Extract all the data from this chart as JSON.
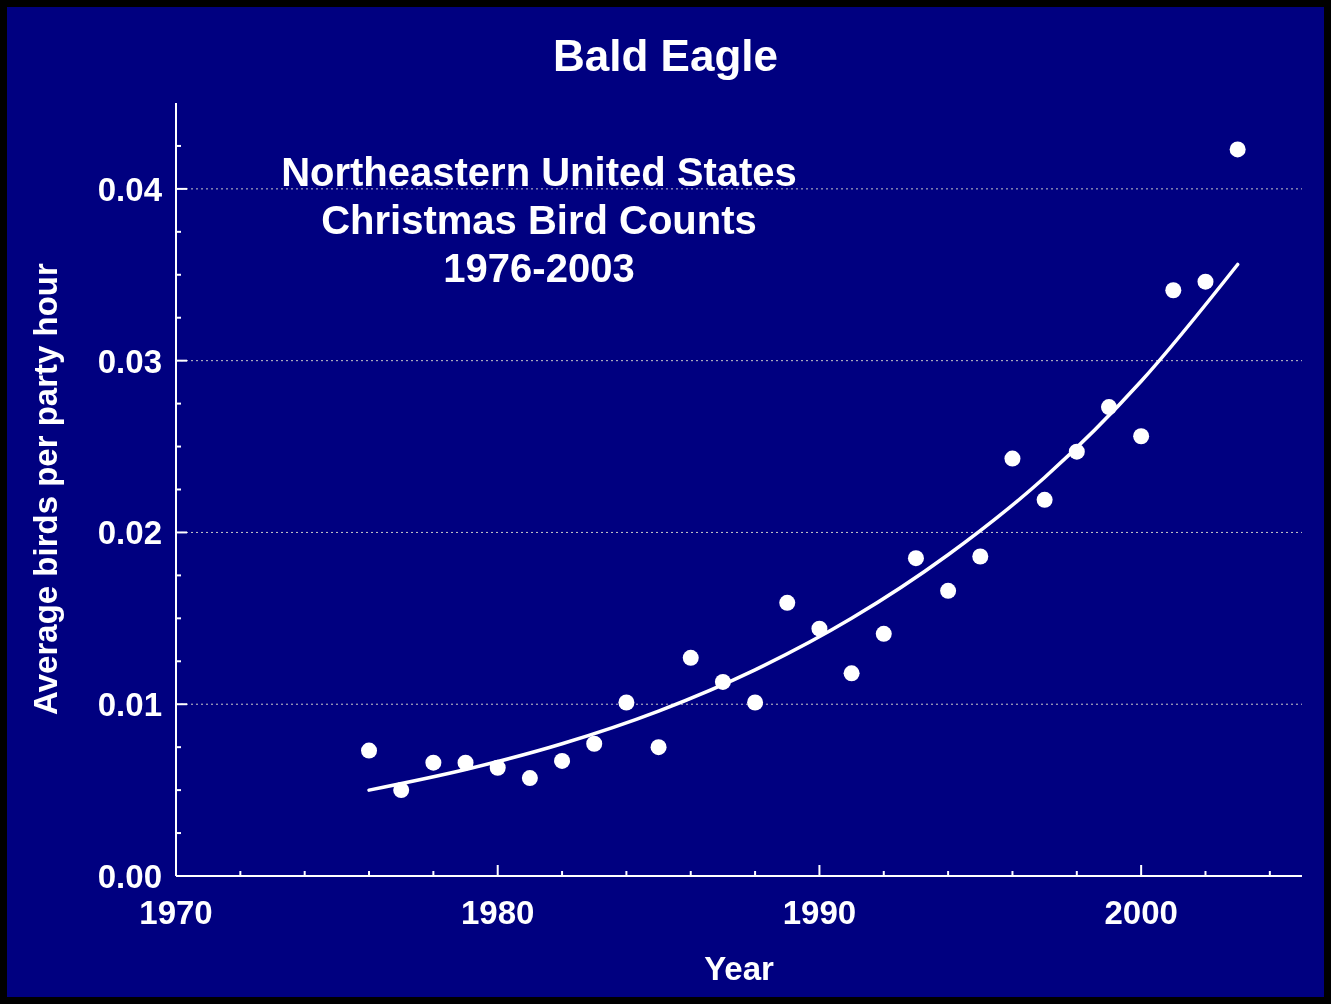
{
  "chart_data": {
    "type": "scatter",
    "title": "Bald Eagle",
    "annotations": [
      "Northeastern United States\nChristmas Bird Counts\n1976-2003"
    ],
    "xlabel": "Year",
    "ylabel": "Average birds per party hour",
    "series": [
      {
        "type": "scatter",
        "color": "#ffffff",
        "marker": "circle",
        "x": [
          1976,
          1977,
          1978,
          1979,
          1980,
          1981,
          1982,
          1983,
          1984,
          1985,
          1986,
          1987,
          1988,
          1989,
          1990,
          1991,
          1992,
          1993,
          1994,
          1995,
          1996,
          1997,
          1998,
          1999,
          2000,
          2001,
          2002,
          2003
        ],
        "values": [
          0.0073,
          0.005,
          0.0066,
          0.0066,
          0.0063,
          0.0057,
          0.0067,
          0.0077,
          0.0101,
          0.0075,
          0.0127,
          0.0113,
          0.0101,
          0.0159,
          0.0144,
          0.0118,
          0.0141,
          0.0185,
          0.0166,
          0.0186,
          0.0243,
          0.0219,
          0.0247,
          0.0273,
          0.0256,
          0.0341,
          0.0346,
          0.0423
        ]
      },
      {
        "type": "line",
        "color": "#ffffff",
        "marker": "none",
        "line_style": "solid",
        "x": [
          1976,
          1979,
          1982,
          1985,
          1988,
          1991,
          1994,
          1997,
          2000,
          2003
        ],
        "values": [
          0.005,
          0.0062,
          0.0077,
          0.0096,
          0.012,
          0.015,
          0.0187,
          0.0232,
          0.0288,
          0.0356
        ]
      }
    ],
    "xlim": [
      1970,
      2005
    ],
    "xticks": [
      1970,
      {
        "value": 1972,
        "label": null
      },
      {
        "value": 1974,
        "label": null
      },
      {
        "value": 1976,
        "label": null
      },
      {
        "value": 1978,
        "label": null
      },
      1980,
      {
        "value": 1982,
        "label": null
      },
      {
        "value": 1984,
        "label": null
      },
      {
        "value": 1986,
        "label": null
      },
      {
        "value": 1988,
        "label": null
      },
      1990,
      {
        "value": 1992,
        "label": null
      },
      {
        "value": 1994,
        "label": null
      },
      {
        "value": 1996,
        "label": null
      },
      {
        "value": 1998,
        "label": null
      },
      2000,
      {
        "value": 2002,
        "label": null
      },
      {
        "value": 2004,
        "label": null
      }
    ],
    "ylim": [
      0,
      0.045
    ],
    "yticks": [
      {
        "value": 0,
        "label": "0.00"
      },
      {
        "value": 0.0025,
        "label": null
      },
      {
        "value": 0.005,
        "label": null
      },
      {
        "value": 0.0075,
        "label": null
      },
      0.01,
      {
        "value": 0.0125,
        "label": null
      },
      {
        "value": 0.015,
        "label": null
      },
      {
        "value": 0.0175,
        "label": null
      },
      0.02,
      {
        "value": 0.0225,
        "label": null
      },
      {
        "value": 0.025,
        "label": null
      },
      {
        "value": 0.0275,
        "label": null
      },
      0.03,
      {
        "value": 0.0325,
        "label": null
      },
      {
        "value": 0.035,
        "label": null
      },
      {
        "value": 0.0375,
        "label": null
      },
      0.04,
      {
        "value": 0.0425,
        "label": null
      }
    ],
    "grid": "y"
  }
}
